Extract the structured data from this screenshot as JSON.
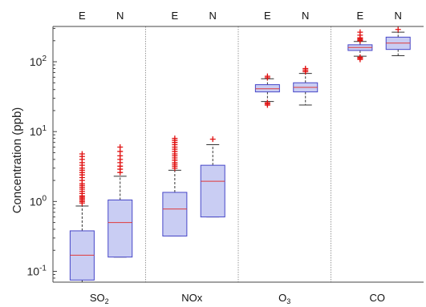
{
  "chart_data": {
    "type": "box",
    "ylabel": "Concentration (ppb)",
    "yscale": "log",
    "ylim": [
      0.07,
      320
    ],
    "yticks": [
      {
        "value": 0.1,
        "base": "10",
        "exp": "-1"
      },
      {
        "value": 1,
        "base": "10",
        "exp": "0"
      },
      {
        "value": 10,
        "base": "10",
        "exp": "1"
      },
      {
        "value": 100,
        "base": "10",
        "exp": "2"
      }
    ],
    "subcategories": [
      "E",
      "N"
    ],
    "colors": {
      "box_fill": "#c9cdf3",
      "box_edge": "#4646c8",
      "median": "#e03a3a",
      "outlier": "#e01010",
      "whisker": "#333333",
      "separator": "#9a9a9a"
    },
    "groups": [
      {
        "label": "SO",
        "label_sub": "2",
        "boxes": [
          {
            "sub": "E",
            "whisker_low": 0.07,
            "q1": 0.075,
            "median": 0.17,
            "q3": 0.38,
            "whisker_high": 0.86,
            "outliers": [
              0.95,
              1.0,
              1.05,
              1.1,
              1.15,
              1.2,
              1.3,
              1.4,
              1.5,
              1.6,
              1.7,
              1.8,
              2.0,
              2.2,
              2.4,
              2.6,
              2.8,
              3.0,
              3.3,
              3.6,
              4.0,
              4.4,
              4.8
            ]
          },
          {
            "sub": "N",
            "whisker_low": 0.16,
            "q1": 0.16,
            "median": 0.5,
            "q3": 1.05,
            "whisker_high": 2.3,
            "outliers": [
              2.6,
              2.9,
              3.2,
              3.6,
              4.0,
              4.5,
              5.2,
              6.0
            ]
          }
        ]
      },
      {
        "label": "NOx",
        "label_sub": "",
        "boxes": [
          {
            "sub": "E",
            "whisker_low": 0.32,
            "q1": 0.32,
            "median": 0.78,
            "q3": 1.35,
            "whisker_high": 2.8,
            "outliers": [
              3.0,
              3.2,
              3.4,
              3.6,
              3.9,
              4.2,
              4.5,
              4.8,
              5.2,
              5.6,
              6.0,
              6.5,
              7.0,
              7.5,
              8.0
            ]
          },
          {
            "sub": "N",
            "whisker_low": 0.6,
            "q1": 0.6,
            "median": 1.95,
            "q3": 3.3,
            "whisker_high": 6.5,
            "outliers": [
              7.8
            ]
          }
        ]
      },
      {
        "label": "O",
        "label_sub": "3",
        "boxes": [
          {
            "sub": "E",
            "whisker_low": 27,
            "q1": 37,
            "median": 41,
            "q3": 47,
            "whisker_high": 57,
            "outliers": [
              24,
              25,
              26,
              59,
              62
            ]
          },
          {
            "sub": "N",
            "whisker_low": 24,
            "q1": 37,
            "median": 43,
            "q3": 50,
            "whisker_high": 68,
            "outliers": [
              72,
              76,
              80
            ]
          }
        ]
      },
      {
        "label": "CO",
        "label_sub": "",
        "boxes": [
          {
            "sub": "E",
            "whisker_low": 120,
            "q1": 145,
            "median": 160,
            "q3": 175,
            "whisker_high": 195,
            "outliers": [
              108,
              112,
              116,
              200,
              205,
              212,
              220,
              240,
              265
            ]
          },
          {
            "sub": "N",
            "whisker_low": 122,
            "q1": 150,
            "median": 185,
            "q3": 225,
            "whisker_high": 265,
            "outliers": [
              290
            ]
          }
        ]
      }
    ]
  }
}
